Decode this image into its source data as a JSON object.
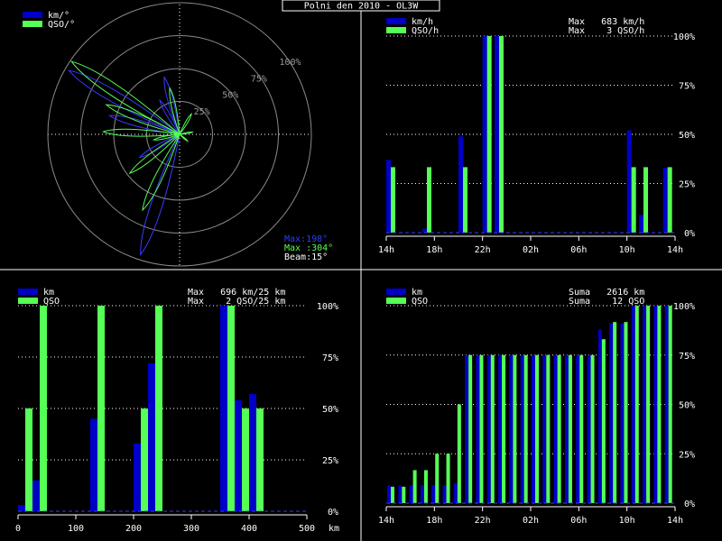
{
  "title": "Polni den 2010 - OL3W",
  "colors": {
    "blue": "#0000c8",
    "green": "#55ff55",
    "white": "#ffffff"
  },
  "chart_data": [
    {
      "type": "polar",
      "legend": [
        "km/°",
        "QSO/°"
      ],
      "ring_labels": [
        "25%",
        "50%",
        "75%",
        "100%"
      ],
      "beam_deg": 15,
      "info_lines": [
        "Max:198°",
        "Max :304°",
        "Beam:15°"
      ],
      "km_lobes": [
        {
          "angle": 300,
          "value": 0.97
        },
        {
          "angle": 198,
          "value": 0.96
        },
        {
          "angle": 345,
          "value": 0.45
        },
        {
          "angle": 285,
          "value": 0.55
        },
        {
          "angle": 240,
          "value": 0.35
        },
        {
          "angle": 330,
          "value": 0.3
        }
      ],
      "qso_lobes": [
        {
          "angle": 304,
          "value": 0.99
        },
        {
          "angle": 292,
          "value": 0.6
        },
        {
          "angle": 272,
          "value": 0.58
        },
        {
          "angle": 258,
          "value": 0.2
        },
        {
          "angle": 206,
          "value": 0.64
        },
        {
          "angle": 232,
          "value": 0.48
        },
        {
          "angle": 348,
          "value": 0.36
        },
        {
          "angle": 30,
          "value": 0.18
        },
        {
          "angle": 80,
          "value": 0.1
        },
        {
          "angle": 130,
          "value": 0.08
        }
      ]
    },
    {
      "type": "bar",
      "legend": [
        "km/h",
        "QSO/h"
      ],
      "info_lines": [
        "Max   683 km/h",
        "Max    3 QSO/h"
      ],
      "x_labels": [
        "14h",
        "18h",
        "22h",
        "02h",
        "06h",
        "10h",
        "14h"
      ],
      "y_ticks": [
        "0%",
        "25%",
        "50%",
        "75%",
        "100%"
      ],
      "bars": [
        {
          "km": 0.37,
          "qso": 0.333
        },
        {
          "km": 0,
          "qso": 0
        },
        {
          "km": 0,
          "qso": 0
        },
        {
          "km": 0.02,
          "qso": 0.333
        },
        {
          "km": 0,
          "qso": 0
        },
        {
          "km": 0,
          "qso": 0
        },
        {
          "km": 0.49,
          "qso": 0.333
        },
        {
          "km": 0,
          "qso": 0
        },
        {
          "km": 1.0,
          "qso": 1.0
        },
        {
          "km": 1.0,
          "qso": 1.0
        },
        {
          "km": 0,
          "qso": 0
        },
        {
          "km": 0,
          "qso": 0
        },
        {
          "km": 0,
          "qso": 0
        },
        {
          "km": 0,
          "qso": 0
        },
        {
          "km": 0,
          "qso": 0
        },
        {
          "km": 0,
          "qso": 0
        },
        {
          "km": 0,
          "qso": 0
        },
        {
          "km": 0,
          "qso": 0
        },
        {
          "km": 0,
          "qso": 0
        },
        {
          "km": 0,
          "qso": 0
        },
        {
          "km": 0.52,
          "qso": 0.333
        },
        {
          "km": 0.09,
          "qso": 0.333
        },
        {
          "km": 0,
          "qso": 0
        },
        {
          "km": 0.33,
          "qso": 0.333
        }
      ]
    },
    {
      "type": "bar",
      "legend": [
        "km",
        "QSO"
      ],
      "info_lines": [
        "Max   696 km/25 km",
        "Max    2 QSO/25 km"
      ],
      "x_labels": [
        "0",
        "100",
        "200",
        "300",
        "400",
        "500"
      ],
      "x_unit": "km",
      "y_ticks": [
        "0%",
        "25%",
        "50%",
        "75%",
        "100%"
      ],
      "bars": [
        {
          "km": 0.03,
          "qso": 0.5
        },
        {
          "km": 0.15,
          "qso": 1.0
        },
        {
          "km": 0,
          "qso": 0
        },
        {
          "km": 0,
          "qso": 0
        },
        {
          "km": 0,
          "qso": 0
        },
        {
          "km": 0.45,
          "qso": 1.0
        },
        {
          "km": 0,
          "qso": 0
        },
        {
          "km": 0,
          "qso": 0
        },
        {
          "km": 0.33,
          "qso": 0.5
        },
        {
          "km": 0.72,
          "qso": 1.0
        },
        {
          "km": 0,
          "qso": 0
        },
        {
          "km": 0,
          "qso": 0
        },
        {
          "km": 0,
          "qso": 0
        },
        {
          "km": 0,
          "qso": 0
        },
        {
          "km": 1.0,
          "qso": 1.0
        },
        {
          "km": 0.54,
          "qso": 0.5
        },
        {
          "km": 0.57,
          "qso": 0.5
        },
        {
          "km": 0,
          "qso": 0
        },
        {
          "km": 0,
          "qso": 0
        },
        {
          "km": 0,
          "qso": 0
        }
      ]
    },
    {
      "type": "bar",
      "legend": [
        "km",
        "QSO"
      ],
      "info_lines": [
        "Suma   2616 km",
        "Suma    12 QSO"
      ],
      "x_labels": [
        "14h",
        "18h",
        "22h",
        "02h",
        "06h",
        "10h",
        "14h"
      ],
      "y_ticks": [
        "0%",
        "25%",
        "50%",
        "75%",
        "100%"
      ],
      "bars": [
        {
          "km": 0.09,
          "qso": 0.083
        },
        {
          "km": 0.09,
          "qso": 0.083
        },
        {
          "km": 0.09,
          "qso": 0.167
        },
        {
          "km": 0.09,
          "qso": 0.167
        },
        {
          "km": 0.09,
          "qso": 0.25
        },
        {
          "km": 0.09,
          "qso": 0.25
        },
        {
          "km": 0.1,
          "qso": 0.5
        },
        {
          "km": 0.75,
          "qso": 0.75
        },
        {
          "km": 0.75,
          "qso": 0.75
        },
        {
          "km": 0.75,
          "qso": 0.75
        },
        {
          "km": 0.75,
          "qso": 0.75
        },
        {
          "km": 0.75,
          "qso": 0.75
        },
        {
          "km": 0.75,
          "qso": 0.75
        },
        {
          "km": 0.75,
          "qso": 0.75
        },
        {
          "km": 0.75,
          "qso": 0.75
        },
        {
          "km": 0.75,
          "qso": 0.75
        },
        {
          "km": 0.75,
          "qso": 0.75
        },
        {
          "km": 0.75,
          "qso": 0.75
        },
        {
          "km": 0.75,
          "qso": 0.75
        },
        {
          "km": 0.88,
          "qso": 0.83
        },
        {
          "km": 0.91,
          "qso": 0.917
        },
        {
          "km": 0.91,
          "qso": 0.917
        },
        {
          "km": 1.0,
          "qso": 1.0
        },
        {
          "km": 1.0,
          "qso": 1.0
        },
        {
          "km": 1.0,
          "qso": 1.0
        },
        {
          "km": 1.0,
          "qso": 1.0
        }
      ]
    }
  ]
}
